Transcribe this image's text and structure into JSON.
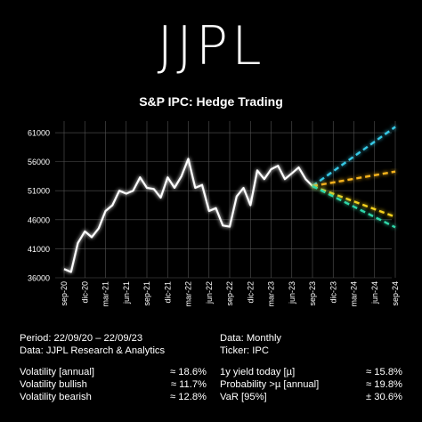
{
  "brand": "JJPL",
  "chart_title": "S&P IPC: Hedge Trading",
  "colors": {
    "background": "#000000",
    "series": "#ffffff",
    "forecast_high": "#36c9e6",
    "forecast_mid_high": "#f6b21a",
    "forecast_mid_low": "#f6d11a",
    "forecast_low": "#2fd6a8",
    "grid": "#555555"
  },
  "chart_data": {
    "type": "line",
    "title": "S&P IPC: Hedge Trading",
    "ylim": [
      36000,
      63000
    ],
    "y_ticks": [
      "61000",
      "56000",
      "51000",
      "46000",
      "41000",
      "36000"
    ],
    "x_ticks": [
      "sep-20",
      "dic-20",
      "mar-21",
      "jun-21",
      "sep-21",
      "dic-21",
      "mar-22",
      "jun-22",
      "sep-22",
      "dic-22",
      "mar-23",
      "jun-23",
      "sep-23",
      "dic-23",
      "mar-24",
      "jun-24",
      "sep-24"
    ],
    "grid": true,
    "series": [
      {
        "x": [
          "sep-20",
          "oct-20",
          "nov-20",
          "dic-20",
          "ene-21",
          "feb-21",
          "mar-21",
          "abr-21",
          "may-21",
          "jun-21",
          "jul-21",
          "ago-21",
          "sep-21",
          "oct-21",
          "nov-21",
          "dic-21",
          "ene-22",
          "feb-22",
          "mar-22",
          "abr-22",
          "may-22",
          "jun-22",
          "jul-22",
          "ago-22",
          "sep-22",
          "oct-22",
          "nov-22",
          "dic-22",
          "ene-23",
          "feb-23",
          "mar-23",
          "abr-23",
          "may-23",
          "jun-23",
          "jul-23",
          "ago-23",
          "sep-23"
        ],
        "values": [
          37500,
          37000,
          42000,
          44000,
          43000,
          44500,
          47500,
          48500,
          51000,
          50500,
          51000,
          53300,
          51500,
          51300,
          49800,
          53300,
          51500,
          53500,
          56500,
          51500,
          52000,
          47500,
          48000,
          45000,
          44800,
          50000,
          51500,
          48500,
          54500,
          53000,
          54700,
          55300,
          53000,
          54000,
          55000,
          53000,
          51800
        ]
      }
    ],
    "forecast": [
      {
        "x": [
          "sep-23",
          "sep-24"
        ],
        "values": [
          51800,
          62000
        ]
      },
      {
        "x": [
          "sep-23",
          "sep-24"
        ],
        "values": [
          51800,
          54300
        ]
      },
      {
        "x": [
          "sep-23",
          "sep-24"
        ],
        "values": [
          51800,
          46500
        ]
      },
      {
        "x": [
          "sep-23",
          "sep-24"
        ],
        "values": [
          51800,
          44700
        ]
      }
    ]
  },
  "info": {
    "period": "Period: 22/09/20 – 22/09/23",
    "data_freq": "Data: Monthly",
    "data_source": "Data: JJPL Research & Analytics",
    "ticker": "Ticker: IPC",
    "rows": [
      {
        "label": "Volatility [annual]",
        "value": "≈ 18.6%",
        "label2": "1y yield today [µ]",
        "value2": "≈ 15.8%"
      },
      {
        "label": "Volatility bullish",
        "value": "≈ 11.7%",
        "label2": "Probability >µ [annual]",
        "value2": "≈ 19.8%"
      },
      {
        "label": "Volatility bearish",
        "value": "≈ 12.8%",
        "label2": "VaR [95%]",
        "value2": "± 30.6%"
      }
    ]
  }
}
